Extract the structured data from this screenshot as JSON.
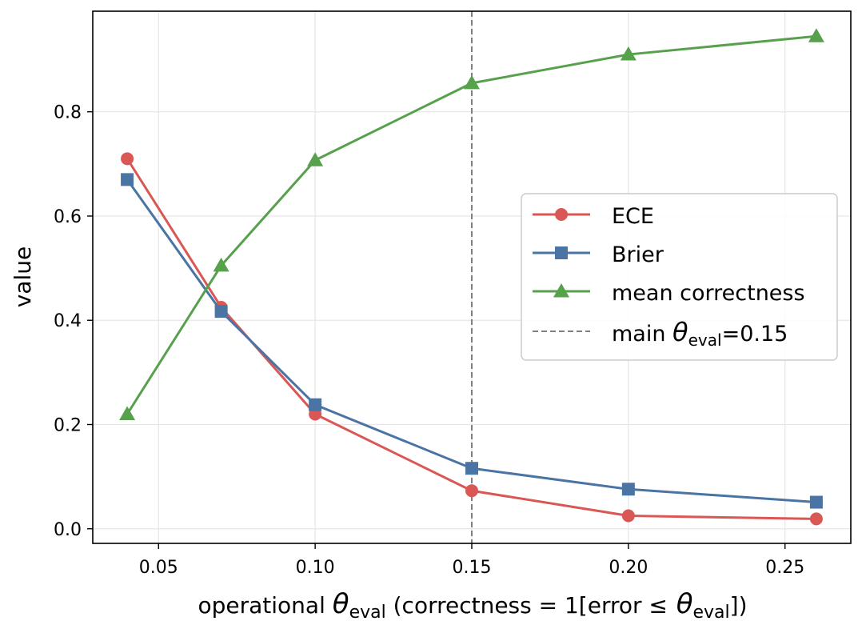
{
  "chart_data": {
    "type": "line",
    "x": [
      0.04,
      0.07,
      0.1,
      0.15,
      0.2,
      0.26
    ],
    "series": [
      {
        "name": "ECE",
        "values": [
          0.71,
          0.425,
          0.22,
          0.073,
          0.025,
          0.019
        ],
        "color": "#d95755",
        "marker": "circle"
      },
      {
        "name": "Brier",
        "values": [
          0.67,
          0.417,
          0.238,
          0.116,
          0.076,
          0.051
        ],
        "color": "#4a74a4",
        "marker": "square"
      },
      {
        "name": "mean correctness",
        "values": [
          0.22,
          0.505,
          0.707,
          0.855,
          0.91,
          0.945
        ],
        "color": "#57a14d",
        "marker": "triangle"
      }
    ],
    "reference_line": {
      "x": 0.15,
      "label_prefix": "main ",
      "label_symbol": "θ",
      "label_sub": "eval",
      "label_suffix": "=0.15",
      "color": "#808080",
      "style": "dashed"
    },
    "xlabel": {
      "prefix": "operational ",
      "symbol": "θ",
      "sub": "eval",
      "middle": "  (correctness = 1[error ",
      "op": "≤",
      "symbol2": " θ",
      "sub2": "eval",
      "suffix": "])"
    },
    "ylabel": "value",
    "xticks": [
      0.05,
      0.1,
      0.15,
      0.2,
      0.25
    ],
    "xtick_labels": [
      "0.05",
      "0.10",
      "0.15",
      "0.20",
      "0.25"
    ],
    "yticks": [
      0.0,
      0.2,
      0.4,
      0.6,
      0.8
    ],
    "ytick_labels": [
      "0.0",
      "0.2",
      "0.4",
      "0.6",
      "0.8"
    ],
    "xlim": [
      0.029,
      0.271
    ],
    "ylim": [
      -0.028,
      0.993
    ],
    "grid": true,
    "legend_position": "center-right"
  }
}
